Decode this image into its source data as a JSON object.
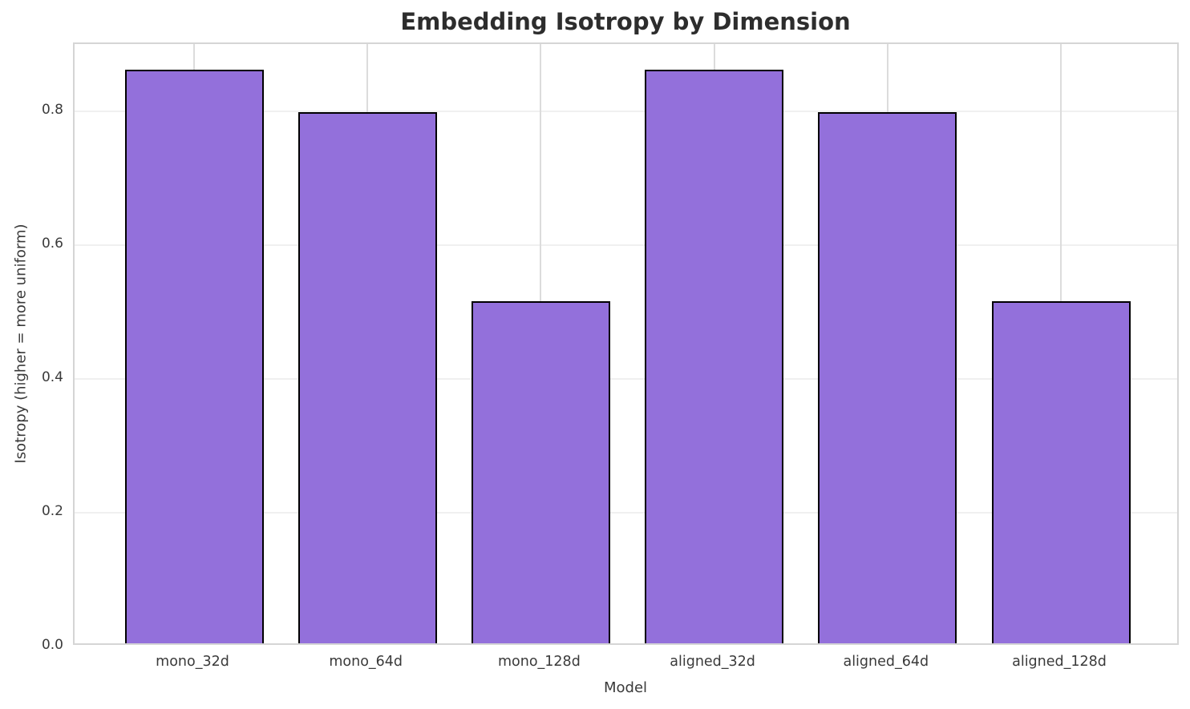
{
  "chart_data": {
    "type": "bar",
    "title": "Embedding Isotropy by Dimension",
    "xlabel": "Model",
    "ylabel": "Isotropy (higher = more uniform)",
    "categories": [
      "mono_32d",
      "mono_64d",
      "mono_128d",
      "aligned_32d",
      "aligned_64d",
      "aligned_128d"
    ],
    "values": [
      0.857,
      0.794,
      0.511,
      0.857,
      0.794,
      0.511
    ],
    "ylim": [
      0,
      0.9
    ],
    "yticks": [
      0.0,
      0.2,
      0.4,
      0.6,
      0.8
    ],
    "ytick_labels": [
      "0.0",
      "0.2",
      "0.4",
      "0.6",
      "0.8"
    ],
    "grid": true,
    "legend": false,
    "bar_color": "#9370DB",
    "bar_edge_color": "#000000"
  }
}
